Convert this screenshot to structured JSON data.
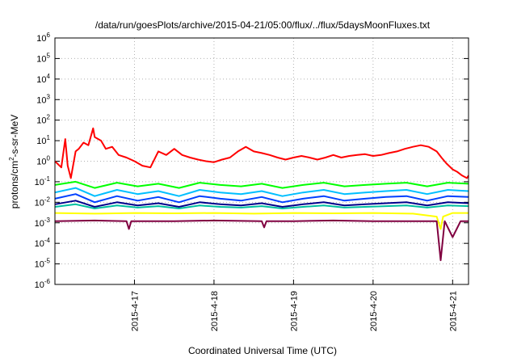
{
  "chart_data": {
    "type": "line",
    "title": "/data/run/goesPlots/archive/2015-04-21/05:00/flux/../flux/5daysMoonFluxes.txt",
    "xlabel": "Coordinated Universal Time (UTC)",
    "ylabel_parts": [
      "protons/cm",
      "2",
      "-s-sr-MeV"
    ],
    "y_scale": "log",
    "ylim": [
      1e-06,
      1000000.0
    ],
    "y_ticks": [
      {
        "base": "10",
        "exp": "-6"
      },
      {
        "base": "10",
        "exp": "-5"
      },
      {
        "base": "10",
        "exp": "-4"
      },
      {
        "base": "10",
        "exp": "-3"
      },
      {
        "base": "10",
        "exp": "-2"
      },
      {
        "base": "10",
        "exp": "-1"
      },
      {
        "base": "10",
        "exp": "0"
      },
      {
        "base": "10",
        "exp": "1"
      },
      {
        "base": "10",
        "exp": "2"
      },
      {
        "base": "10",
        "exp": "3"
      },
      {
        "base": "10",
        "exp": "4"
      },
      {
        "base": "10",
        "exp": "5"
      },
      {
        "base": "10",
        "exp": "6"
      }
    ],
    "xlim_days": [
      "2015-04-16 00:00",
      "2015-04-21 05:00"
    ],
    "x_ticks": [
      "2015-4-17",
      "2015-4-18",
      "2015-4-19",
      "2015-4-20",
      "2015-4-21"
    ],
    "grid": true,
    "x_unit": "days after 2015-04-16 00:00",
    "series": [
      {
        "color": "#ff0000",
        "x": [
          0.0,
          0.08,
          0.13,
          0.16,
          0.2,
          0.26,
          0.3,
          0.36,
          0.42,
          0.48,
          0.5,
          0.58,
          0.64,
          0.72,
          0.8,
          0.9,
          1.0,
          1.1,
          1.2,
          1.3,
          1.4,
          1.5,
          1.6,
          1.7,
          1.8,
          1.9,
          2.0,
          2.1,
          2.2,
          2.3,
          2.4,
          2.5,
          2.6,
          2.7,
          2.8,
          2.9,
          3.0,
          3.1,
          3.2,
          3.3,
          3.4,
          3.5,
          3.6,
          3.7,
          3.8,
          3.9,
          4.0,
          4.1,
          4.2,
          4.3,
          4.4,
          4.5,
          4.6,
          4.7,
          4.8,
          4.86,
          4.92,
          5.0,
          5.06,
          5.12,
          5.18,
          5.2
        ],
        "y": [
          1.0,
          0.5,
          12,
          0.6,
          0.15,
          3,
          4,
          8,
          6,
          40,
          15,
          10,
          4,
          5,
          2,
          1.5,
          1.0,
          0.6,
          0.5,
          3,
          2,
          4,
          2,
          1.5,
          1.2,
          1.0,
          0.9,
          1.2,
          1.5,
          3,
          5,
          3,
          2.5,
          2,
          1.5,
          1.2,
          1.5,
          1.8,
          1.5,
          1.2,
          1.5,
          2,
          1.5,
          1.8,
          2,
          2.2,
          1.8,
          2,
          2.5,
          3,
          4,
          5,
          6,
          5,
          3,
          1.5,
          0.8,
          0.4,
          0.3,
          0.2,
          0.15,
          0.2
        ]
      },
      {
        "color": "#00ff00",
        "x": [
          0.0,
          0.26,
          0.5,
          0.78,
          1.04,
          1.3,
          1.56,
          1.82,
          2.08,
          2.34,
          2.6,
          2.86,
          3.12,
          3.38,
          3.64,
          3.9,
          4.16,
          4.42,
          4.68,
          4.94,
          5.2
        ],
        "y": [
          0.07,
          0.1,
          0.05,
          0.09,
          0.06,
          0.08,
          0.05,
          0.09,
          0.07,
          0.06,
          0.08,
          0.05,
          0.07,
          0.09,
          0.06,
          0.07,
          0.08,
          0.09,
          0.06,
          0.09,
          0.08
        ]
      },
      {
        "color": "#00bfff",
        "x": [
          0.0,
          0.26,
          0.5,
          0.78,
          1.04,
          1.3,
          1.56,
          1.82,
          2.08,
          2.34,
          2.6,
          2.86,
          3.12,
          3.38,
          3.64,
          3.9,
          4.16,
          4.42,
          4.68,
          4.94,
          5.2
        ],
        "y": [
          0.03,
          0.05,
          0.02,
          0.04,
          0.025,
          0.035,
          0.02,
          0.04,
          0.03,
          0.025,
          0.035,
          0.02,
          0.03,
          0.04,
          0.025,
          0.03,
          0.035,
          0.04,
          0.025,
          0.04,
          0.035
        ]
      },
      {
        "color": "#0040ff",
        "x": [
          0.0,
          0.26,
          0.5,
          0.78,
          1.04,
          1.3,
          1.56,
          1.82,
          2.08,
          2.34,
          2.6,
          2.86,
          3.12,
          3.38,
          3.64,
          3.9,
          4.16,
          4.42,
          4.68,
          4.94,
          5.2
        ],
        "y": [
          0.015,
          0.025,
          0.01,
          0.02,
          0.012,
          0.018,
          0.01,
          0.02,
          0.015,
          0.012,
          0.018,
          0.01,
          0.015,
          0.02,
          0.012,
          0.015,
          0.018,
          0.02,
          0.012,
          0.02,
          0.018
        ]
      },
      {
        "color": "#00008b",
        "x": [
          0.0,
          0.26,
          0.5,
          0.78,
          1.04,
          1.3,
          1.56,
          1.82,
          2.08,
          2.34,
          2.6,
          2.86,
          3.12,
          3.38,
          3.64,
          3.9,
          4.16,
          4.42,
          4.68,
          4.94,
          5.2
        ],
        "y": [
          0.008,
          0.012,
          0.006,
          0.01,
          0.007,
          0.009,
          0.006,
          0.01,
          0.008,
          0.007,
          0.009,
          0.006,
          0.008,
          0.01,
          0.007,
          0.008,
          0.009,
          0.01,
          0.007,
          0.01,
          0.009
        ]
      },
      {
        "color": "#00c0a0",
        "x": [
          0.0,
          0.26,
          0.5,
          0.78,
          1.04,
          1.3,
          1.56,
          1.82,
          2.08,
          2.34,
          2.6,
          2.86,
          3.12,
          3.38,
          3.64,
          3.9,
          4.16,
          4.42,
          4.68,
          4.94,
          5.2
        ],
        "y": [
          0.006,
          0.008,
          0.005,
          0.007,
          0.0055,
          0.0065,
          0.005,
          0.007,
          0.006,
          0.0055,
          0.0065,
          0.005,
          0.006,
          0.007,
          0.0055,
          0.006,
          0.0065,
          0.007,
          0.0055,
          0.007,
          0.0065
        ]
      },
      {
        "color": "#ffff00",
        "x": [
          0.0,
          0.5,
          1.0,
          1.5,
          2.0,
          2.5,
          3.0,
          3.5,
          4.0,
          4.5,
          4.8,
          4.85,
          4.88,
          5.0,
          5.2
        ],
        "y": [
          0.003,
          0.0028,
          0.003,
          0.0029,
          0.003,
          0.0028,
          0.003,
          0.0029,
          0.003,
          0.0028,
          0.002,
          0.0005,
          0.002,
          0.003,
          0.003
        ]
      },
      {
        "color": "#800040",
        "x": [
          0.0,
          0.5,
          0.9,
          0.93,
          0.96,
          1.5,
          2.0,
          2.6,
          2.63,
          2.66,
          3.0,
          3.5,
          4.0,
          4.5,
          4.8,
          4.85,
          4.9,
          5.0,
          5.1,
          5.2
        ],
        "y": [
          0.0012,
          0.0013,
          0.0012,
          0.0005,
          0.0012,
          0.0012,
          0.0013,
          0.0012,
          0.0006,
          0.0012,
          0.0012,
          0.0013,
          0.0012,
          0.0012,
          0.0012,
          1.5e-05,
          0.0012,
          0.0002,
          0.0012,
          0.0012
        ]
      }
    ]
  }
}
